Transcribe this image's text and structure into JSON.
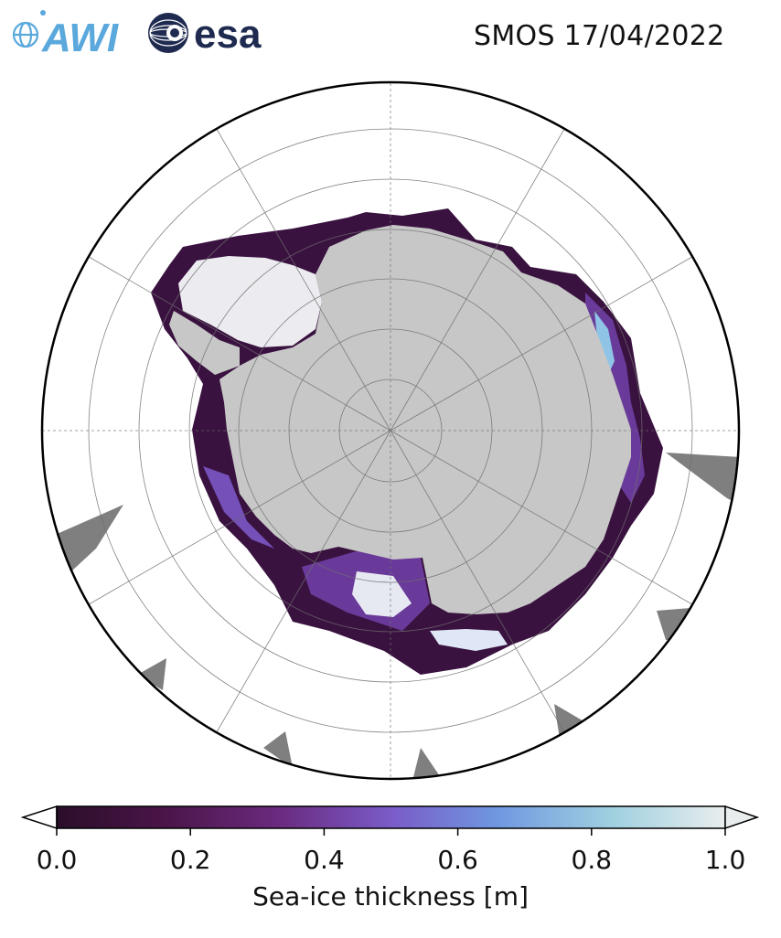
{
  "header": {
    "title": "SMOS 17/04/2022",
    "logos": [
      {
        "name": "AWI",
        "text": "AWI",
        "color": "#5aa8dc"
      },
      {
        "name": "esa",
        "text": "esa",
        "color": "#1e2a4f"
      }
    ]
  },
  "map": {
    "projection": "south-polar-stereographic",
    "gridlines": true,
    "land_color": "#c7c7c7",
    "ocean_color": "#ffffff",
    "icebergs_color": "#7f7f7f"
  },
  "colorbar": {
    "label": "Sea-ice thickness [m]",
    "ticks": [
      "0.0",
      "0.2",
      "0.4",
      "0.6",
      "0.8",
      "1.0"
    ],
    "tick_values": [
      0.0,
      0.2,
      0.4,
      0.6,
      0.8,
      1.0
    ],
    "range": [
      0.0,
      1.0
    ],
    "extend": "both",
    "colormap": [
      "#2a0e2a",
      "#4a1548",
      "#6a2a7e",
      "#7a5bc8",
      "#6f98e0",
      "#9fd0e0",
      "#e9eded"
    ]
  }
}
